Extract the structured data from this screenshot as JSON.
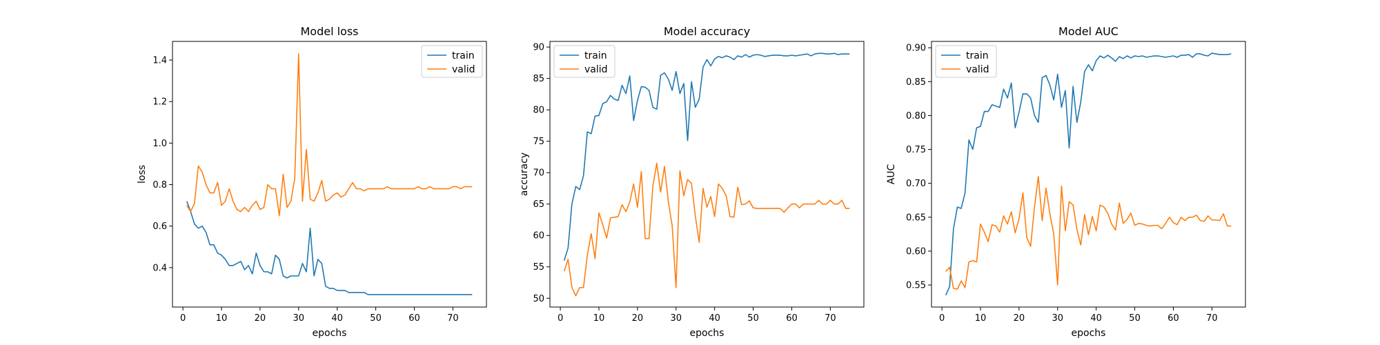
{
  "figure": {
    "background": "#ffffff"
  },
  "colors": {
    "train": "#1f77b4",
    "valid": "#ff7f0e"
  },
  "chart_data": [
    {
      "id": "loss",
      "type": "line",
      "title": "Model loss",
      "xlabel": "epochs",
      "ylabel": "loss",
      "xlim": [
        -2.7,
        78.7
      ],
      "ylim": [
        0.21,
        1.49
      ],
      "xticks": [
        0,
        10,
        20,
        30,
        40,
        50,
        60,
        70
      ],
      "yticks": [
        0.4,
        0.6,
        0.8,
        1.0,
        1.2,
        1.4
      ],
      "ytick_format": 1,
      "legend": "upper right",
      "grid": false,
      "series": [
        {
          "name": "train",
          "color": "#1f77b4",
          "x": [
            1,
            2,
            3,
            4,
            5,
            6,
            7,
            8,
            9,
            10,
            11,
            12,
            13,
            14,
            15,
            16,
            17,
            18,
            19,
            20,
            21,
            22,
            23,
            24,
            25,
            26,
            27,
            28,
            29,
            30,
            31,
            32,
            33,
            34,
            35,
            36,
            37,
            38,
            39,
            40,
            41,
            42,
            43,
            44,
            45,
            46,
            47,
            48,
            49,
            50,
            51,
            52,
            53,
            54,
            55,
            56,
            57,
            58,
            59,
            60,
            61,
            62,
            63,
            64,
            65,
            66,
            67,
            68,
            69,
            70,
            71,
            72,
            73,
            74,
            75
          ],
          "values": [
            0.72,
            0.67,
            0.61,
            0.59,
            0.6,
            0.57,
            0.51,
            0.51,
            0.47,
            0.46,
            0.44,
            0.41,
            0.41,
            0.42,
            0.43,
            0.39,
            0.41,
            0.37,
            0.47,
            0.41,
            0.38,
            0.38,
            0.37,
            0.46,
            0.44,
            0.36,
            0.35,
            0.36,
            0.36,
            0.36,
            0.42,
            0.38,
            0.59,
            0.36,
            0.44,
            0.42,
            0.31,
            0.3,
            0.3,
            0.29,
            0.29,
            0.29,
            0.28,
            0.28,
            0.28,
            0.28,
            0.28,
            0.27,
            0.27,
            0.27,
            0.27,
            0.27,
            0.27,
            0.27,
            0.27,
            0.27,
            0.27,
            0.27,
            0.27,
            0.27,
            0.27,
            0.27,
            0.27,
            0.27,
            0.27,
            0.27,
            0.27,
            0.27,
            0.27,
            0.27,
            0.27,
            0.27,
            0.27,
            0.27,
            0.27
          ]
        },
        {
          "name": "valid",
          "color": "#ff7f0e",
          "x": [
            1,
            2,
            3,
            4,
            5,
            6,
            7,
            8,
            9,
            10,
            11,
            12,
            13,
            14,
            15,
            16,
            17,
            18,
            19,
            20,
            21,
            22,
            23,
            24,
            25,
            26,
            27,
            28,
            29,
            30,
            31,
            32,
            33,
            34,
            35,
            36,
            37,
            38,
            39,
            40,
            41,
            42,
            43,
            44,
            45,
            46,
            47,
            48,
            49,
            50,
            51,
            52,
            53,
            54,
            55,
            56,
            57,
            58,
            59,
            60,
            61,
            62,
            63,
            64,
            65,
            66,
            67,
            68,
            69,
            70,
            71,
            72,
            73,
            74,
            75
          ],
          "values": [
            0.7,
            0.67,
            0.71,
            0.89,
            0.86,
            0.8,
            0.76,
            0.76,
            0.81,
            0.7,
            0.72,
            0.78,
            0.72,
            0.68,
            0.67,
            0.69,
            0.67,
            0.7,
            0.72,
            0.68,
            0.69,
            0.8,
            0.78,
            0.78,
            0.65,
            0.85,
            0.69,
            0.72,
            0.83,
            1.43,
            0.72,
            0.97,
            0.73,
            0.72,
            0.76,
            0.82,
            0.72,
            0.73,
            0.75,
            0.76,
            0.74,
            0.75,
            0.78,
            0.81,
            0.78,
            0.78,
            0.77,
            0.78,
            0.78,
            0.78,
            0.78,
            0.78,
            0.79,
            0.78,
            0.78,
            0.78,
            0.78,
            0.78,
            0.78,
            0.78,
            0.79,
            0.78,
            0.78,
            0.79,
            0.78,
            0.78,
            0.78,
            0.78,
            0.78,
            0.79,
            0.79,
            0.78,
            0.79,
            0.79,
            0.79
          ]
        }
      ]
    },
    {
      "id": "accuracy",
      "type": "line",
      "title": "Model accuracy",
      "xlabel": "epochs",
      "ylabel": "accuracy",
      "xlim": [
        -2.7,
        78.7
      ],
      "ylim": [
        48.6,
        90.9
      ],
      "xticks": [
        0,
        10,
        20,
        30,
        40,
        50,
        60,
        70
      ],
      "yticks": [
        50,
        55,
        60,
        65,
        70,
        75,
        80,
        85,
        90
      ],
      "ytick_format": 0,
      "legend": "upper left",
      "grid": false,
      "series": [
        {
          "name": "train",
          "color": "#1f77b4",
          "x": [
            1,
            2,
            3,
            4,
            5,
            6,
            7,
            8,
            9,
            10,
            11,
            12,
            13,
            14,
            15,
            16,
            17,
            18,
            19,
            20,
            21,
            22,
            23,
            24,
            25,
            26,
            27,
            28,
            29,
            30,
            31,
            32,
            33,
            34,
            35,
            36,
            37,
            38,
            39,
            40,
            41,
            42,
            43,
            44,
            45,
            46,
            47,
            48,
            49,
            50,
            51,
            52,
            53,
            54,
            55,
            56,
            57,
            58,
            59,
            60,
            61,
            62,
            63,
            64,
            65,
            66,
            67,
            68,
            69,
            70,
            71,
            72,
            73,
            74,
            75
          ],
          "values": [
            56.0,
            58.0,
            65.0,
            67.8,
            67.3,
            69.5,
            76.5,
            76.2,
            79.0,
            79.1,
            81.0,
            81.3,
            82.3,
            81.7,
            81.5,
            83.9,
            82.6,
            85.4,
            78.3,
            81.5,
            83.7,
            83.6,
            83.1,
            80.4,
            80.1,
            85.5,
            85.9,
            84.9,
            83.1,
            86.1,
            82.6,
            84.2,
            75.1,
            84.5,
            80.4,
            81.7,
            86.8,
            88.0,
            87.0,
            88.1,
            88.5,
            88.3,
            88.6,
            88.4,
            88.0,
            88.6,
            88.4,
            88.8,
            88.4,
            88.7,
            88.8,
            88.7,
            88.5,
            88.6,
            88.7,
            88.7,
            88.7,
            88.6,
            88.6,
            88.7,
            88.6,
            88.7,
            88.8,
            88.9,
            88.6,
            88.9,
            89.0,
            89.0,
            88.9,
            88.9,
            89.0,
            88.8,
            88.9,
            88.9,
            88.9
          ]
        },
        {
          "name": "valid",
          "color": "#ff7f0e",
          "x": [
            1,
            2,
            3,
            4,
            5,
            6,
            7,
            8,
            9,
            10,
            11,
            12,
            13,
            14,
            15,
            16,
            17,
            18,
            19,
            20,
            21,
            22,
            23,
            24,
            25,
            26,
            27,
            28,
            29,
            30,
            31,
            32,
            33,
            34,
            35,
            36,
            37,
            38,
            39,
            40,
            41,
            42,
            43,
            44,
            45,
            46,
            47,
            48,
            49,
            50,
            51,
            52,
            53,
            54,
            55,
            56,
            57,
            58,
            59,
            60,
            61,
            62,
            63,
            64,
            65,
            66,
            67,
            68,
            69,
            70,
            71,
            72,
            73,
            74,
            75
          ],
          "values": [
            54.3,
            56.2,
            51.7,
            50.4,
            51.7,
            51.7,
            56.9,
            60.3,
            56.3,
            63.6,
            61.7,
            59.6,
            62.8,
            62.9,
            63.0,
            64.9,
            63.8,
            65.3,
            68.2,
            64.5,
            70.2,
            59.5,
            59.5,
            67.9,
            71.5,
            66.9,
            71.0,
            65.4,
            61.5,
            51.7,
            70.3,
            66.3,
            68.9,
            68.3,
            63.1,
            58.9,
            67.5,
            64.5,
            66.2,
            63.0,
            68.2,
            67.5,
            66.3,
            63.0,
            62.9,
            67.7,
            64.9,
            65.0,
            65.5,
            64.4,
            64.3,
            64.3,
            64.3,
            64.3,
            64.3,
            64.3,
            64.3,
            63.7,
            64.4,
            65.0,
            65.0,
            64.4,
            65.0,
            65.0,
            65.0,
            65.0,
            65.6,
            65.0,
            65.0,
            65.6,
            65.0,
            65.0,
            65.6,
            64.3,
            64.3
          ]
        }
      ]
    },
    {
      "id": "auc",
      "type": "line",
      "title": "Model AUC",
      "xlabel": "epochs",
      "ylabel": "AUC",
      "xlim": [
        -2.7,
        78.7
      ],
      "ylim": [
        0.5175,
        0.9094
      ],
      "xticks": [
        0,
        10,
        20,
        30,
        40,
        50,
        60,
        70
      ],
      "yticks": [
        0.55,
        0.6,
        0.65,
        0.7,
        0.75,
        0.8,
        0.85,
        0.9
      ],
      "ytick_format": 2,
      "legend": "upper left",
      "grid": false,
      "series": [
        {
          "name": "train",
          "color": "#1f77b4",
          "x": [
            1,
            2,
            3,
            4,
            5,
            6,
            7,
            8,
            9,
            10,
            11,
            12,
            13,
            14,
            15,
            16,
            17,
            18,
            19,
            20,
            21,
            22,
            23,
            24,
            25,
            26,
            27,
            28,
            29,
            30,
            31,
            32,
            33,
            34,
            35,
            36,
            37,
            38,
            39,
            40,
            41,
            42,
            43,
            44,
            45,
            46,
            47,
            48,
            49,
            50,
            51,
            52,
            53,
            54,
            55,
            56,
            57,
            58,
            59,
            60,
            61,
            62,
            63,
            64,
            65,
            66,
            67,
            68,
            69,
            70,
            71,
            72,
            73,
            74,
            75
          ],
          "values": [
            0.535,
            0.548,
            0.633,
            0.665,
            0.663,
            0.686,
            0.764,
            0.75,
            0.782,
            0.784,
            0.806,
            0.806,
            0.816,
            0.814,
            0.812,
            0.839,
            0.826,
            0.848,
            0.782,
            0.805,
            0.832,
            0.832,
            0.826,
            0.8,
            0.79,
            0.856,
            0.859,
            0.845,
            0.823,
            0.861,
            0.812,
            0.837,
            0.752,
            0.843,
            0.79,
            0.82,
            0.865,
            0.875,
            0.866,
            0.881,
            0.888,
            0.885,
            0.889,
            0.885,
            0.88,
            0.887,
            0.884,
            0.888,
            0.885,
            0.888,
            0.887,
            0.888,
            0.886,
            0.887,
            0.888,
            0.888,
            0.887,
            0.886,
            0.887,
            0.888,
            0.886,
            0.889,
            0.889,
            0.89,
            0.886,
            0.891,
            0.891,
            0.889,
            0.888,
            0.892,
            0.891,
            0.89,
            0.89,
            0.89,
            0.891
          ]
        },
        {
          "name": "valid",
          "color": "#ff7f0e",
          "x": [
            1,
            2,
            3,
            4,
            5,
            6,
            7,
            8,
            9,
            10,
            11,
            12,
            13,
            14,
            15,
            16,
            17,
            18,
            19,
            20,
            21,
            22,
            23,
            24,
            25,
            26,
            27,
            28,
            29,
            30,
            31,
            32,
            33,
            34,
            35,
            36,
            37,
            38,
            39,
            40,
            41,
            42,
            43,
            44,
            45,
            46,
            47,
            48,
            49,
            50,
            51,
            52,
            53,
            54,
            55,
            56,
            57,
            58,
            59,
            60,
            61,
            62,
            63,
            64,
            65,
            66,
            67,
            68,
            69,
            70,
            71,
            72,
            73,
            74,
            75
          ],
          "values": [
            0.57,
            0.576,
            0.545,
            0.544,
            0.556,
            0.546,
            0.584,
            0.586,
            0.584,
            0.64,
            0.628,
            0.614,
            0.639,
            0.637,
            0.628,
            0.652,
            0.64,
            0.658,
            0.627,
            0.648,
            0.686,
            0.62,
            0.607,
            0.665,
            0.71,
            0.645,
            0.693,
            0.655,
            0.625,
            0.55,
            0.696,
            0.63,
            0.673,
            0.668,
            0.632,
            0.609,
            0.654,
            0.624,
            0.651,
            0.63,
            0.668,
            0.665,
            0.656,
            0.64,
            0.631,
            0.671,
            0.641,
            0.647,
            0.656,
            0.638,
            0.641,
            0.64,
            0.638,
            0.637,
            0.638,
            0.638,
            0.633,
            0.641,
            0.65,
            0.642,
            0.639,
            0.65,
            0.645,
            0.65,
            0.65,
            0.653,
            0.645,
            0.644,
            0.652,
            0.646,
            0.646,
            0.645,
            0.655,
            0.637,
            0.637
          ]
        }
      ]
    }
  ]
}
